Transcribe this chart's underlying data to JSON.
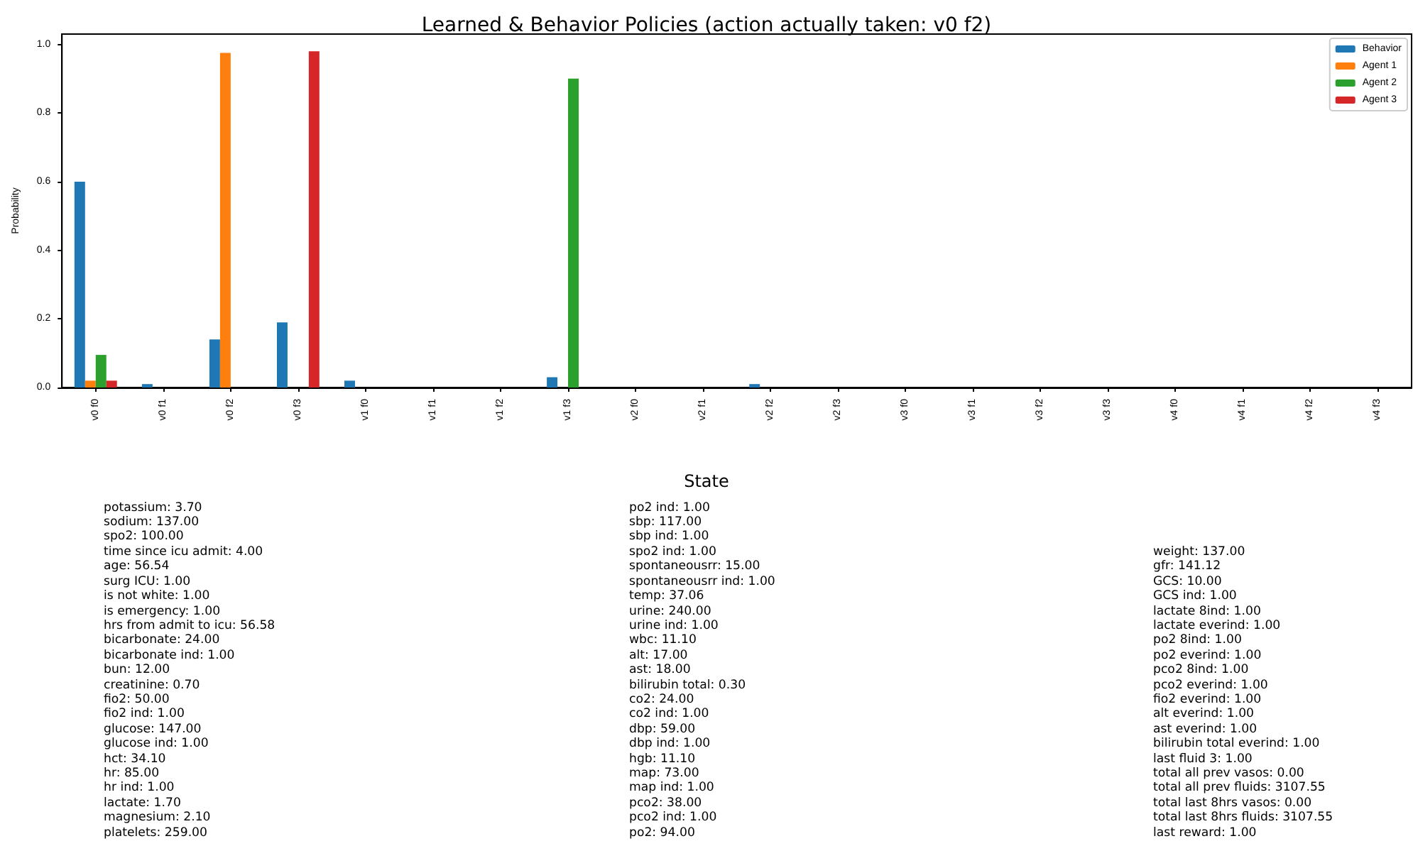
{
  "chart_data": [
    {
      "type": "bar",
      "title": "Learned & Behavior Policies (action actually taken: v0 f2)",
      "ylabel": "Probability",
      "categories": [
        "v0 f0",
        "v0 f1",
        "v0 f2",
        "v0 f3",
        "v1 f0",
        "v1 f1",
        "v1 f2",
        "v1 f3",
        "v2 f0",
        "v2 f1",
        "v2 f2",
        "v2 f3",
        "v3 f0",
        "v3 f1",
        "v3 f2",
        "v3 f3",
        "v4 f0",
        "v4 f1",
        "v4 f2",
        "v4 f3"
      ],
      "series": [
        {
          "name": "Behavior",
          "color": "#1f77b4",
          "values": [
            0.6,
            0.01,
            0.14,
            0.19,
            0.02,
            0,
            0,
            0.03,
            0,
            0,
            0.01,
            0,
            0,
            0,
            0,
            0,
            0,
            0,
            0,
            0
          ]
        },
        {
          "name": "Agent 1",
          "color": "#ff7f0e",
          "values": [
            0.02,
            0,
            0.975,
            0,
            0,
            0,
            0,
            0,
            0,
            0,
            0,
            0,
            0,
            0,
            0,
            0,
            0,
            0,
            0,
            0
          ]
        },
        {
          "name": "Agent 2",
          "color": "#2ca02c",
          "values": [
            0.095,
            0,
            0,
            0,
            0,
            0,
            0,
            0.9,
            0,
            0,
            0,
            0,
            0,
            0,
            0,
            0,
            0,
            0,
            0,
            0
          ]
        },
        {
          "name": "Agent 3",
          "color": "#d62728",
          "values": [
            0.02,
            0,
            0,
            0.98,
            0,
            0,
            0,
            0,
            0,
            0,
            0,
            0,
            0,
            0,
            0,
            0,
            0,
            0,
            0,
            0
          ]
        }
      ],
      "ylim": [
        0,
        1.03
      ],
      "yticks": [
        {
          "value": 0,
          "label": "0.0"
        },
        0.2,
        0.4,
        0.6,
        0.8,
        {
          "value": 1,
          "label": "1.0"
        }
      ],
      "grid": false,
      "legend": "top right"
    },
    {
      "type": "other",
      "title": "State",
      "annotations": [
        "potassium: 3.70\nsodium: 137.00\nspo2: 100.00\ntime since icu admit: 4.00\nage: 56.54\nsurg ICU: 1.00\nis not white: 1.00\nis emergency: 1.00\nhrs from admit to icu: 56.58\nbicarbonate: 24.00\nbicarbonate ind: 1.00\nbun: 12.00\ncreatinine: 0.70\nfio2: 50.00\nfio2 ind: 1.00\nglucose: 147.00\nglucose ind: 1.00\nhct: 34.10\nhr: 85.00\nhr ind: 1.00\nlactate: 1.70\nmagnesium: 2.10\nplatelets: 259.00",
        "po2 ind: 1.00\nsbp: 117.00\nsbp ind: 1.00\nspo2 ind: 1.00\nspontaneousrr: 15.00\nspontaneousrr ind: 1.00\ntemp: 37.06\nurine: 240.00\nurine ind: 1.00\nwbc: 11.10\nalt: 17.00\nast: 18.00\nbilirubin total: 0.30\nco2: 24.00\nco2 ind: 1.00\ndbp: 59.00\ndbp ind: 1.00\nhgb: 11.10\nmap: 73.00\nmap ind: 1.00\npco2: 38.00\npco2 ind: 1.00\npo2: 94.00",
        "weight: 137.00\ngfr: 141.12\nGCS: 10.00\nGCS ind: 1.00\nlactate 8ind: 1.00\nlactate everind: 1.00\npo2 8ind: 1.00\npo2 everind: 1.00\npco2 8ind: 1.00\npco2 everind: 1.00\nfio2 everind: 1.00\nalt everind: 1.00\nast everind: 1.00\nbilirubin total everind: 1.00\nlast fluid 3: 1.00\ntotal all prev vasos: 0.00\ntotal all prev fluids: 3107.55\ntotal last 8hrs vasos: 0.00\ntotal last 8hrs fluids: 3107.55\nlast reward: 1.00"
      ]
    }
  ]
}
